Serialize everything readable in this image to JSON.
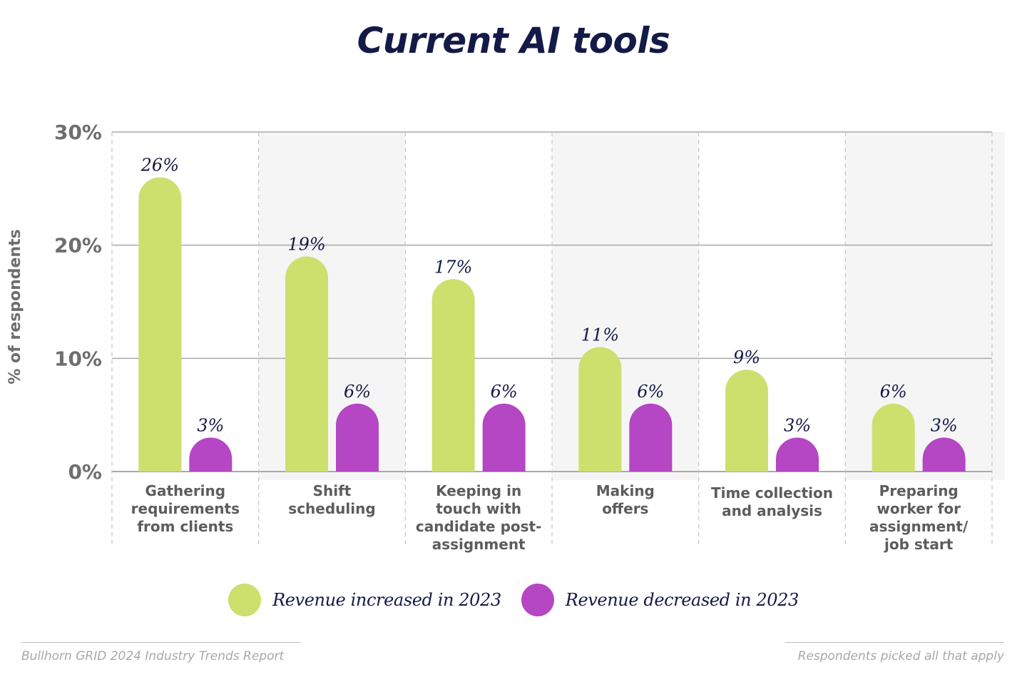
{
  "chart_data": {
    "type": "bar",
    "title": "Current AI tools",
    "ylabel": "% of respondents",
    "xlabel": "",
    "ylim": [
      0,
      30
    ],
    "yticks": [
      0,
      10,
      20,
      30
    ],
    "ytick_labels": [
      "0%",
      "10%",
      "20%",
      "30%"
    ],
    "categories": [
      [
        "Gathering",
        "requirements",
        "from clients"
      ],
      [
        "Shift",
        "scheduling"
      ],
      [
        "Keeping in",
        "touch with",
        "candidate post-",
        "assignment"
      ],
      [
        "Making",
        "offers"
      ],
      [
        "Time collection",
        "and analysis"
      ],
      [
        "Preparing",
        "worker for",
        "assignment/",
        "job start"
      ]
    ],
    "series": [
      {
        "name": "Revenue increased in 2023",
        "color": "#cddf6d",
        "values": [
          26,
          19,
          17,
          11,
          9,
          6
        ],
        "labels": [
          "26%",
          "19%",
          "17%",
          "11%",
          "9%",
          "6%"
        ]
      },
      {
        "name": "Revenue decreased in 2023",
        "color": "#b546c4",
        "values": [
          3,
          6,
          6,
          6,
          3,
          3
        ],
        "labels": [
          "3%",
          "6%",
          "6%",
          "6%",
          "3%",
          "3%"
        ]
      }
    ],
    "grid": true,
    "legend_position": "bottom"
  },
  "footer": {
    "source": "Bullhorn GRID 2024 Industry Trends Report",
    "note": "Respondents picked all that apply"
  }
}
